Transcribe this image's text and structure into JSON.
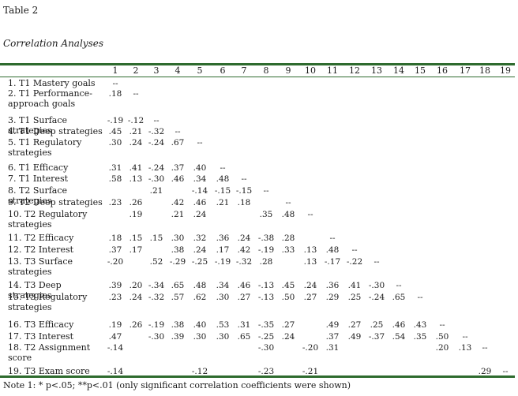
{
  "caption": "Table 2",
  "subtitle": "Correlation Analyses",
  "note": "Note 1: * p<.05; **p<.01 (only significant correlation coefficients were shown)",
  "columns": [
    "1",
    "2",
    "3",
    "4",
    "5",
    "6",
    "7",
    "8",
    "9",
    "10",
    "11",
    "12",
    "13",
    "14",
    "15",
    "16",
    "17",
    "18",
    "19"
  ],
  "rows": [
    {
      "label": "1. T1 Mastery goals",
      "values": [
        "--"
      ]
    },
    {
      "label": "2. T1 Performance-approach goals",
      "values": [
        ".18",
        "--"
      ]
    },
    {
      "label": "3. T1 Surface strategies",
      "values": [
        "-.19",
        "-.12",
        "--"
      ]
    },
    {
      "label": "4. T1 Deep strategies",
      "values": [
        ".45",
        ".21",
        "-.32",
        "--"
      ]
    },
    {
      "label": "5. T1 Regulatory strategies",
      "values": [
        ".30",
        ".24",
        "-.24",
        ".67",
        "--"
      ]
    },
    {
      "label": "6. T1 Efficacy",
      "values": [
        ".31",
        ".41",
        "-.24",
        ".37",
        ".40",
        "--"
      ]
    },
    {
      "label": "7. T1 Interest",
      "values": [
        ".58",
        ".13",
        "-.30",
        ".46",
        ".34",
        ".48",
        "--"
      ]
    },
    {
      "label": "8. T2 Surface strategies",
      "values": [
        "",
        "",
        ".21",
        "",
        "-.14",
        "-.15",
        "-.15",
        "--"
      ]
    },
    {
      "label": "9. T2 Deep strategies",
      "values": [
        ".23",
        ".26",
        "",
        ".42",
        ".46",
        ".21",
        ".18",
        "",
        "--"
      ]
    },
    {
      "label": "10. T2 Regulatory strategies",
      "values": [
        "",
        ".19",
        "",
        ".21",
        ".24",
        "",
        "",
        ".35",
        ".48",
        "--"
      ]
    },
    {
      "label": "11. T2 Efficacy",
      "values": [
        ".18",
        ".15",
        ".15",
        ".30",
        ".32",
        ".36",
        ".24",
        "-.38",
        ".28",
        "",
        "--"
      ]
    },
    {
      "label": "12. T2 Interest",
      "values": [
        ".37",
        ".17",
        "",
        ".38",
        ".24",
        ".17",
        ".42",
        "-.19",
        ".33",
        ".13",
        ".48",
        "--"
      ]
    },
    {
      "label": "13. T3 Surface strategies",
      "values": [
        "-.20",
        "",
        ".52",
        "-.29",
        "-.25",
        "-.19",
        "-.32",
        ".28",
        "",
        ".13",
        "-.17",
        "-.22",
        "--"
      ]
    },
    {
      "label": "14. T3 Deep strategies",
      "values": [
        ".39",
        ".20",
        "-.34",
        ".65",
        ".48",
        ".34",
        ".46",
        "-.13",
        ".45",
        ".24",
        ".36",
        ".41",
        "-.30",
        "--"
      ]
    },
    {
      "label": "15. T3 Regulatory strategies",
      "values": [
        ".23",
        ".24",
        "-.32",
        ".57",
        ".62",
        ".30",
        ".27",
        "-.13",
        ".50",
        ".27",
        ".29",
        ".25",
        "-.24",
        ".65",
        "--"
      ]
    },
    {
      "label": "16. T3 Efficacy",
      "values": [
        ".19",
        ".26",
        "-.19",
        ".38",
        ".40",
        ".53",
        ".31",
        "-.35",
        ".27",
        "",
        ".49",
        ".27",
        ".25",
        ".46",
        ".43",
        "--"
      ]
    },
    {
      "label": "17. T3 Interest",
      "values": [
        ".47",
        "",
        "-.30",
        ".39",
        ".30",
        ".30",
        ".65",
        "-.25",
        ".24",
        "",
        ".37",
        ".49",
        "-.37",
        ".54",
        ".35",
        ".50",
        "--"
      ]
    },
    {
      "label": "18. T2 Assignment score",
      "values": [
        "-.14",
        "",
        "",
        "",
        "",
        "",
        "",
        "-.30",
        "",
        "-.20",
        ".31",
        "",
        "",
        "",
        "",
        ".20",
        ".13",
        "--"
      ]
    },
    {
      "label": "19. T3 Exam score",
      "values": [
        "-.14",
        "",
        "",
        "",
        "-.12",
        "",
        "",
        "-.23",
        "",
        "-.21",
        "",
        "",
        "",
        "",
        "",
        "",
        "",
        ".29",
        "--"
      ]
    }
  ],
  "colors": {
    "rule": "#2e6b2e",
    "text": "#1a1a1a"
  }
}
